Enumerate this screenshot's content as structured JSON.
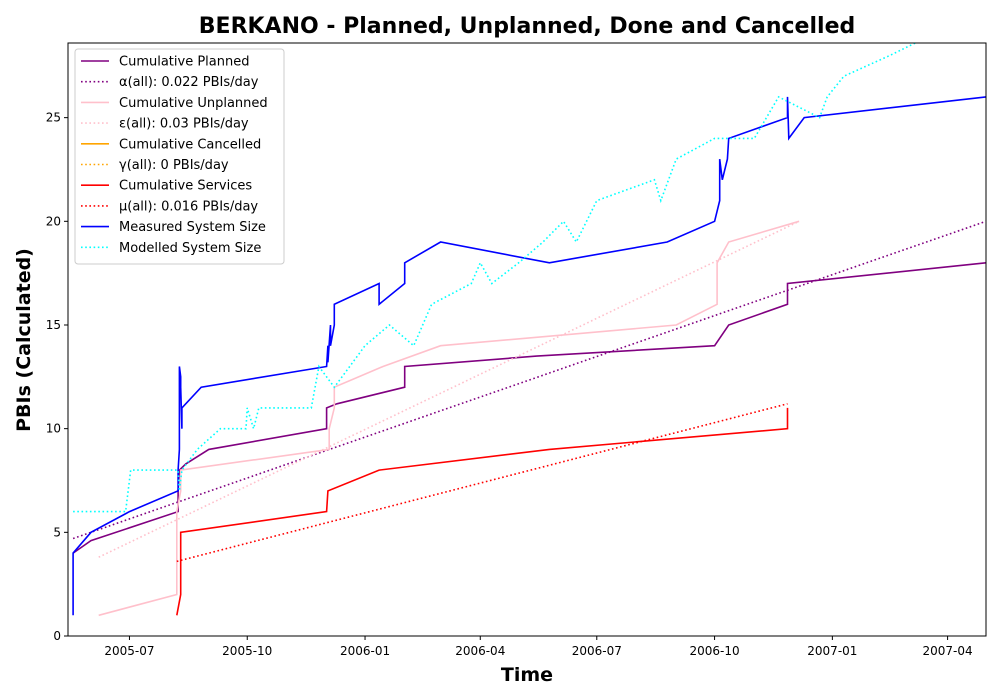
{
  "chart_data": {
    "type": "line",
    "title": "BERKANO - Planned, Unplanned, Done  and Cancelled",
    "xlabel": "Time",
    "ylabel": "PBIs (Calculated)",
    "xlim": [
      "2005-05-14",
      "2007-05-01"
    ],
    "ylim": [
      0,
      28.6
    ],
    "x_ticks": [
      "2005-07",
      "2005-10",
      "2006-01",
      "2006-04",
      "2006-07",
      "2006-10",
      "2007-01",
      "2007-04"
    ],
    "y_ticks": [
      0,
      5,
      10,
      15,
      20,
      25
    ],
    "grid": false,
    "legend": {
      "position": "top-left"
    },
    "series": [
      {
        "name": "Cumulative Planned",
        "color": "#800080",
        "style": "solid",
        "points": [
          [
            "2005-05-18",
            4
          ],
          [
            "2005-06-01",
            4.6
          ],
          [
            "2005-08-08",
            6
          ],
          [
            "2005-08-08",
            7
          ],
          [
            "2005-08-09",
            8
          ],
          [
            "2005-08-14",
            8.3
          ],
          [
            "2005-09-01",
            9
          ],
          [
            "2005-12-02",
            10
          ],
          [
            "2005-12-02",
            11
          ],
          [
            "2005-12-10",
            11.2
          ],
          [
            "2006-02-01",
            12
          ],
          [
            "2006-02-01",
            13
          ],
          [
            "2006-05-15",
            13.5
          ],
          [
            "2006-10-01",
            14
          ],
          [
            "2006-10-12",
            15
          ],
          [
            "2006-11-27",
            16
          ],
          [
            "2006-11-27",
            17
          ],
          [
            "2007-05-01",
            18
          ]
        ]
      },
      {
        "name": "α(all): 0.022 PBIs/day",
        "color": "#800080",
        "style": "dotted",
        "points": [
          [
            "2005-05-18",
            4.7
          ],
          [
            "2007-05-01",
            20
          ]
        ]
      },
      {
        "name": "Cumulative Unplanned",
        "color": "#ffc0cb",
        "style": "solid",
        "points": [
          [
            "2005-06-07",
            1
          ],
          [
            "2005-08-07",
            2
          ],
          [
            "2005-08-07",
            6
          ],
          [
            "2005-08-10",
            7
          ],
          [
            "2005-08-10",
            8
          ],
          [
            "2005-12-04",
            9
          ],
          [
            "2005-12-04",
            10
          ],
          [
            "2005-12-08",
            11
          ],
          [
            "2005-12-08",
            12
          ],
          [
            "2006-01-15",
            13
          ],
          [
            "2006-03-01",
            14
          ],
          [
            "2006-09-01",
            15
          ],
          [
            "2006-10-03",
            16
          ],
          [
            "2006-10-03",
            18
          ],
          [
            "2006-10-12",
            19
          ],
          [
            "2006-12-06",
            20
          ]
        ]
      },
      {
        "name": "ε(all): 0.03 PBIs/day",
        "color": "#ffc0cb",
        "style": "dotted",
        "points": [
          [
            "2005-06-07",
            3.8
          ],
          [
            "2006-12-06",
            20
          ]
        ]
      },
      {
        "name": "Cumulative Cancelled",
        "color": "#ffa500",
        "style": "solid",
        "points": []
      },
      {
        "name": "γ(all): 0 PBIs/day",
        "color": "#ffa500",
        "style": "dotted",
        "points": []
      },
      {
        "name": "Cumulative Services",
        "color": "#ff0000",
        "style": "solid",
        "points": [
          [
            "2005-08-07",
            1
          ],
          [
            "2005-08-10",
            2
          ],
          [
            "2005-08-10",
            5
          ],
          [
            "2005-12-02",
            6
          ],
          [
            "2005-12-03",
            7
          ],
          [
            "2006-01-12",
            8
          ],
          [
            "2006-05-25",
            9
          ],
          [
            "2006-11-27",
            10
          ],
          [
            "2006-11-27",
            11
          ]
        ]
      },
      {
        "name": "μ(all): 0.016 PBIs/day",
        "color": "#ff0000",
        "style": "dotted",
        "points": [
          [
            "2005-08-07",
            3.6
          ],
          [
            "2006-11-27",
            11.2
          ]
        ]
      },
      {
        "name": "Measured System Size",
        "color": "#0000ff",
        "style": "solid",
        "points": [
          [
            "2005-05-18",
            1
          ],
          [
            "2005-05-18",
            4
          ],
          [
            "2005-06-01",
            5
          ],
          [
            "2005-07-01",
            6
          ],
          [
            "2005-08-08",
            7
          ],
          [
            "2005-08-08",
            8
          ],
          [
            "2005-08-09",
            9
          ],
          [
            "2005-08-09",
            13
          ],
          [
            "2005-08-10",
            12.5
          ],
          [
            "2005-08-10",
            12
          ],
          [
            "2005-08-11",
            10
          ],
          [
            "2005-08-11",
            11
          ],
          [
            "2005-08-26",
            12
          ],
          [
            "2005-12-02",
            13
          ],
          [
            "2005-12-03",
            14
          ],
          [
            "2005-12-03",
            13.2
          ],
          [
            "2005-12-05",
            15
          ],
          [
            "2005-12-05",
            14
          ],
          [
            "2005-12-08",
            15
          ],
          [
            "2005-12-08",
            16
          ],
          [
            "2006-01-12",
            17
          ],
          [
            "2006-01-12",
            16
          ],
          [
            "2006-02-01",
            17
          ],
          [
            "2006-02-01",
            18
          ],
          [
            "2006-03-01",
            19
          ],
          [
            "2006-05-25",
            18
          ],
          [
            "2006-08-25",
            19
          ],
          [
            "2006-10-01",
            20
          ],
          [
            "2006-10-05",
            21
          ],
          [
            "2006-10-05",
            23
          ],
          [
            "2006-10-07",
            22
          ],
          [
            "2006-10-11",
            23
          ],
          [
            "2006-10-12",
            24
          ],
          [
            "2006-11-27",
            25
          ],
          [
            "2006-11-27",
            26
          ],
          [
            "2006-11-28",
            24
          ],
          [
            "2006-12-10",
            25
          ],
          [
            "2007-05-01",
            26
          ]
        ]
      },
      {
        "name": "Modelled System Size",
        "color": "#00ffff",
        "style": "dotted",
        "points": [
          [
            "2005-05-18",
            6
          ],
          [
            "2005-06-28",
            6
          ],
          [
            "2005-07-02",
            8
          ],
          [
            "2005-08-08",
            8
          ],
          [
            "2005-08-09",
            7
          ],
          [
            "2005-08-11",
            8
          ],
          [
            "2005-08-23",
            9
          ],
          [
            "2005-09-10",
            10
          ],
          [
            "2005-09-30",
            10
          ],
          [
            "2005-10-01",
            11
          ],
          [
            "2005-10-06",
            10
          ],
          [
            "2005-10-10",
            11
          ],
          [
            "2005-11-20",
            11
          ],
          [
            "2005-11-26",
            13
          ],
          [
            "2005-12-08",
            12
          ],
          [
            "2005-12-20",
            13
          ],
          [
            "2006-01-01",
            14
          ],
          [
            "2006-01-20",
            15
          ],
          [
            "2006-02-08",
            14
          ],
          [
            "2006-02-15",
            15
          ],
          [
            "2006-02-22",
            16
          ],
          [
            "2006-03-25",
            17
          ],
          [
            "2006-04-01",
            18
          ],
          [
            "2006-04-10",
            17
          ],
          [
            "2006-05-01",
            18
          ],
          [
            "2006-05-20",
            19
          ],
          [
            "2006-06-05",
            20
          ],
          [
            "2006-06-15",
            19
          ],
          [
            "2006-07-01",
            21
          ],
          [
            "2006-08-15",
            22
          ],
          [
            "2006-08-20",
            21
          ],
          [
            "2006-09-01",
            23
          ],
          [
            "2006-10-01",
            24
          ],
          [
            "2006-11-01",
            24
          ],
          [
            "2006-11-20",
            26
          ],
          [
            "2006-12-22",
            25
          ],
          [
            "2006-12-28",
            26
          ],
          [
            "2007-01-10",
            27
          ],
          [
            "2007-02-15",
            28
          ],
          [
            "2007-03-20",
            29
          ]
        ]
      }
    ]
  }
}
